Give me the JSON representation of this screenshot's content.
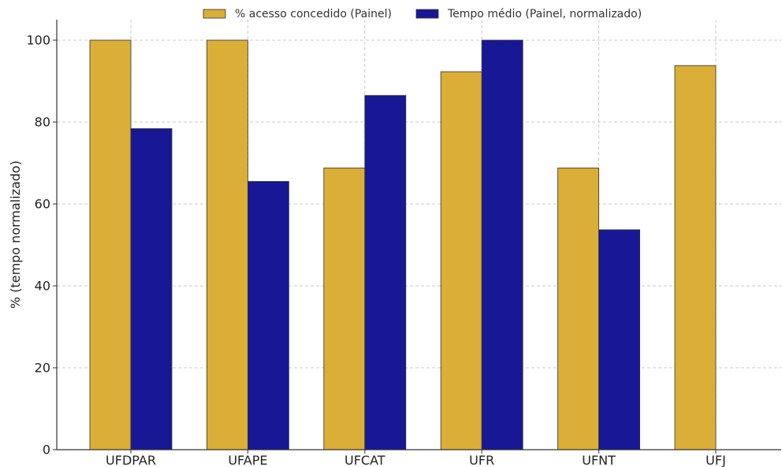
{
  "chart_data": {
    "type": "bar",
    "title": "",
    "xlabel": "",
    "ylabel": "% (tempo normalizado)",
    "categories": [
      "UFDPAR",
      "UFAPE",
      "UFCAT",
      "UFR",
      "UFNT",
      "UFJ"
    ],
    "series": [
      {
        "name": "% acesso concedido (Painel)",
        "color": "#DAAE37",
        "values": [
          100,
          100,
          68.8,
          92.3,
          68.8,
          93.8
        ]
      },
      {
        "name": "Tempo médio (Painel, normalizado)",
        "color": "#181896",
        "values": [
          78.4,
          65.5,
          86.5,
          100,
          53.7,
          null
        ]
      }
    ],
    "ylim": [
      0,
      105
    ],
    "yticks": [
      0,
      20,
      40,
      60,
      80,
      100
    ],
    "grid": true,
    "legend_position": "top-center"
  }
}
